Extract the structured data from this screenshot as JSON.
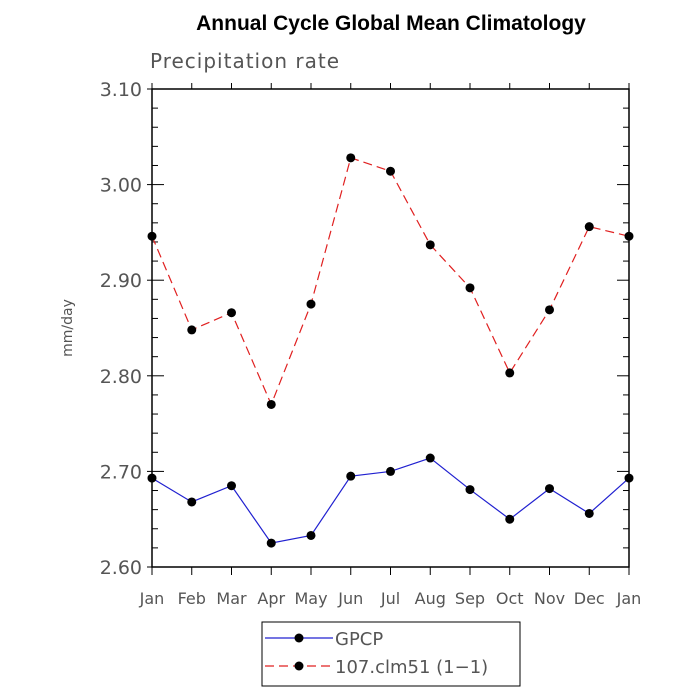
{
  "chart_data": {
    "type": "line",
    "title": "Annual Cycle Global Mean Climatology",
    "subtitle": "Precipitation rate",
    "xlabel": "",
    "ylabel": "mm/day",
    "categories": [
      "Jan",
      "Feb",
      "Mar",
      "Apr",
      "May",
      "Jun",
      "Jul",
      "Aug",
      "Sep",
      "Oct",
      "Nov",
      "Dec",
      "Jan"
    ],
    "ylim": [
      2.6,
      3.1
    ],
    "yticks": [
      2.6,
      2.7,
      2.8,
      2.9,
      3.0,
      3.1
    ],
    "ytick_labels": [
      "2.60",
      "2.70",
      "2.80",
      "2.90",
      "3.00",
      "3.10"
    ],
    "grid": false,
    "legend_position": "bottom-center",
    "series": [
      {
        "name": "GPCP",
        "color": "#2020d0",
        "style": "solid",
        "marker": "filled-circle",
        "values": [
          2.693,
          2.668,
          2.685,
          2.625,
          2.633,
          2.695,
          2.7,
          2.714,
          2.681,
          2.65,
          2.682,
          2.656,
          2.693
        ]
      },
      {
        "name": "107.clm51 (1−1)",
        "color": "#e02020",
        "style": "dashed",
        "marker": "filled-circle",
        "values": [
          2.946,
          2.848,
          2.866,
          2.77,
          2.875,
          3.028,
          3.014,
          2.937,
          2.892,
          2.803,
          2.869,
          2.956,
          2.946
        ]
      }
    ]
  }
}
